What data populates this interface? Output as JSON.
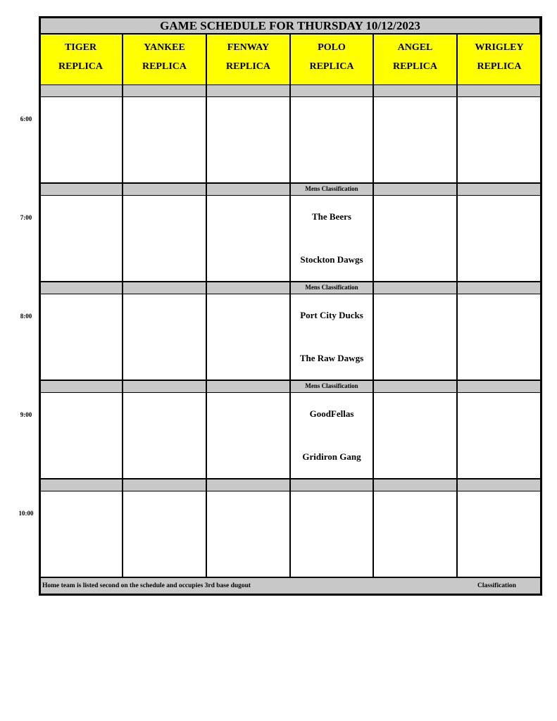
{
  "title": "GAME SCHEDULE FOR THURSDAY 10/12/2023",
  "fields": [
    {
      "line1": "TIGER",
      "line2": "REPLICA"
    },
    {
      "line1": "YANKEE",
      "line2": "REPLICA"
    },
    {
      "line1": "FENWAY",
      "line2": "REPLICA"
    },
    {
      "line1": "POLO",
      "line2": "REPLICA"
    },
    {
      "line1": "ANGEL",
      "line2": "REPLICA"
    },
    {
      "line1": "WRIGLEY",
      "line2": "REPLICA"
    }
  ],
  "slots": [
    {
      "time": "6:00",
      "games": [
        null,
        null,
        null,
        null,
        null,
        null
      ]
    },
    {
      "time": "7:00",
      "games": [
        null,
        null,
        null,
        {
          "classification": "Mens Classification",
          "away": "The Beers",
          "home": "Stockton Dawgs"
        },
        null,
        null
      ]
    },
    {
      "time": "8:00",
      "games": [
        null,
        null,
        null,
        {
          "classification": "Mens Classification",
          "away": "Port City Ducks",
          "home": "The Raw Dawgs"
        },
        null,
        null
      ]
    },
    {
      "time": "9:00",
      "games": [
        null,
        null,
        null,
        {
          "classification": "Mens Classification",
          "away": "GoodFellas",
          "home": "Gridiron Gang"
        },
        null,
        null
      ]
    },
    {
      "time": "10:00",
      "games": [
        null,
        null,
        null,
        null,
        null,
        null
      ]
    }
  ],
  "footer": {
    "note": "Home team is listed second on the schedule and occupies 3rd base dugout",
    "classification_label": "Classification"
  },
  "colors": {
    "header_bg": "#ffff00",
    "bar_bg": "#c8c8c8"
  }
}
